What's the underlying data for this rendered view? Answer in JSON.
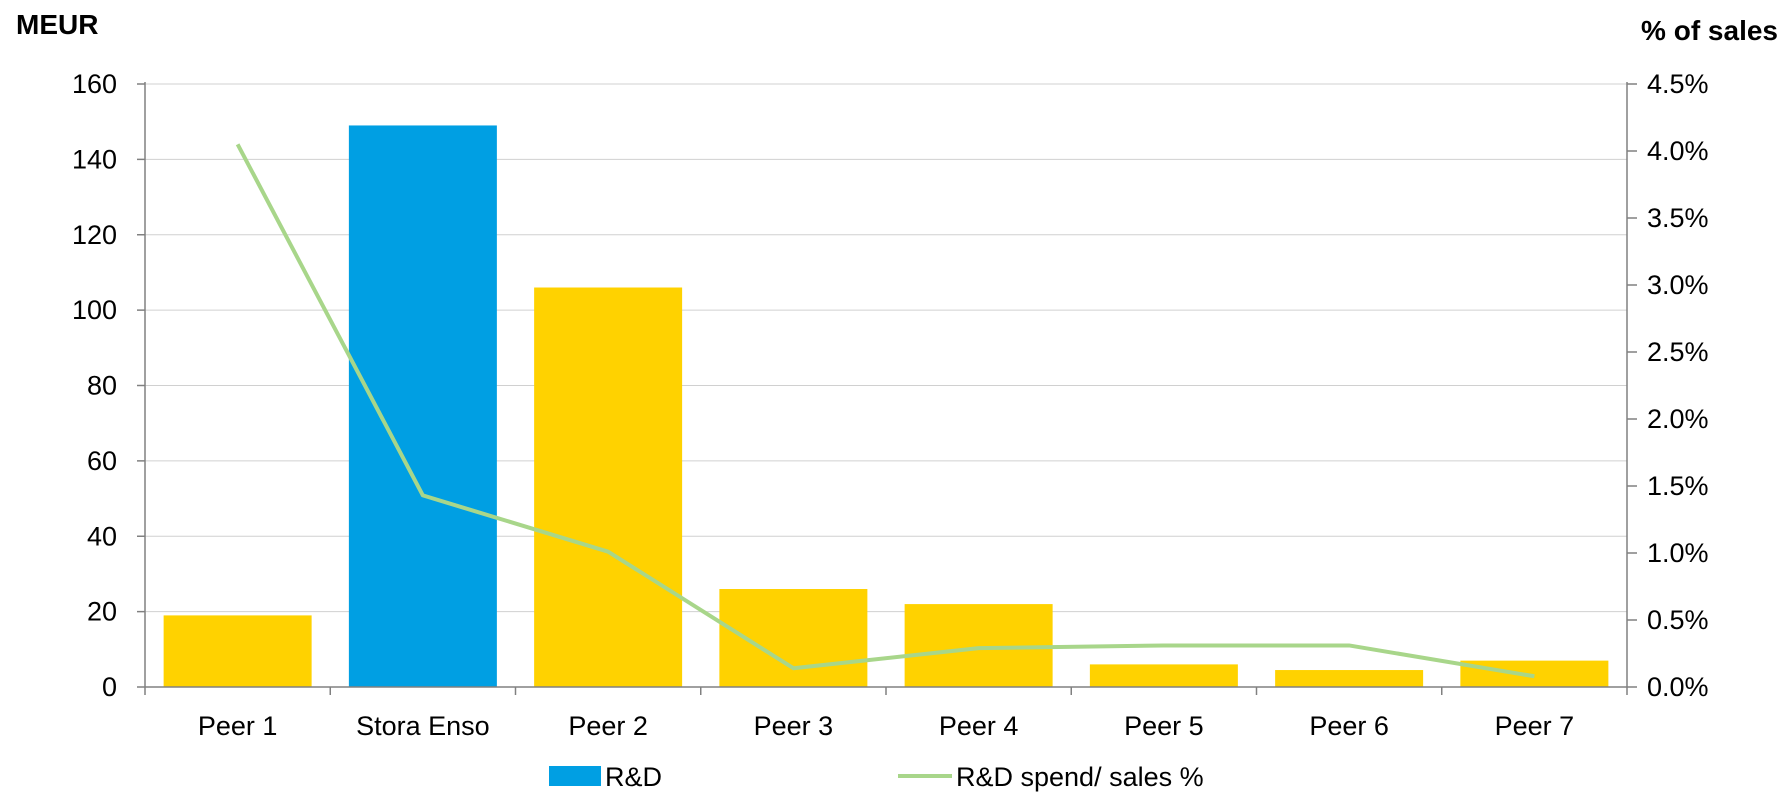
{
  "chart_data": {
    "type": "bar",
    "categories": [
      "Peer 1",
      "Stora Enso",
      "Peer 2",
      "Peer 3",
      "Peer 4",
      "Peer 5",
      "Peer 6",
      "Peer 7"
    ],
    "series": [
      {
        "name": "R&D",
        "kind": "bar",
        "axis": "left",
        "values": [
          19,
          149,
          106,
          26,
          22,
          6,
          4.5,
          7
        ],
        "colors": [
          "#ffd200",
          "#009fe3",
          "#ffd200",
          "#ffd200",
          "#ffd200",
          "#ffd200",
          "#ffd200",
          "#ffd200"
        ],
        "legend_color": "#009fe3"
      },
      {
        "name": "R&D spend/ sales %",
        "kind": "line",
        "axis": "right",
        "values": [
          4.05,
          1.43,
          1.01,
          0.14,
          0.29,
          0.31,
          0.31,
          0.08
        ],
        "color": "#a8d68a"
      }
    ],
    "y_left": {
      "label": "MEUR",
      "min": 0,
      "max": 160,
      "ticks": [
        "0",
        "20",
        "40",
        "60",
        "80",
        "100",
        "120",
        "140",
        "160"
      ]
    },
    "y_right": {
      "label": "% of sales",
      "min": 0,
      "max": 4.5,
      "ticks": [
        "0.0%",
        "0.5%",
        "1.0%",
        "1.5%",
        "2.0%",
        "2.5%",
        "3.0%",
        "3.5%",
        "4.0%",
        "4.5%"
      ]
    },
    "grid": true,
    "grid_color": "#d0d0d0",
    "legend_position": "bottom"
  }
}
